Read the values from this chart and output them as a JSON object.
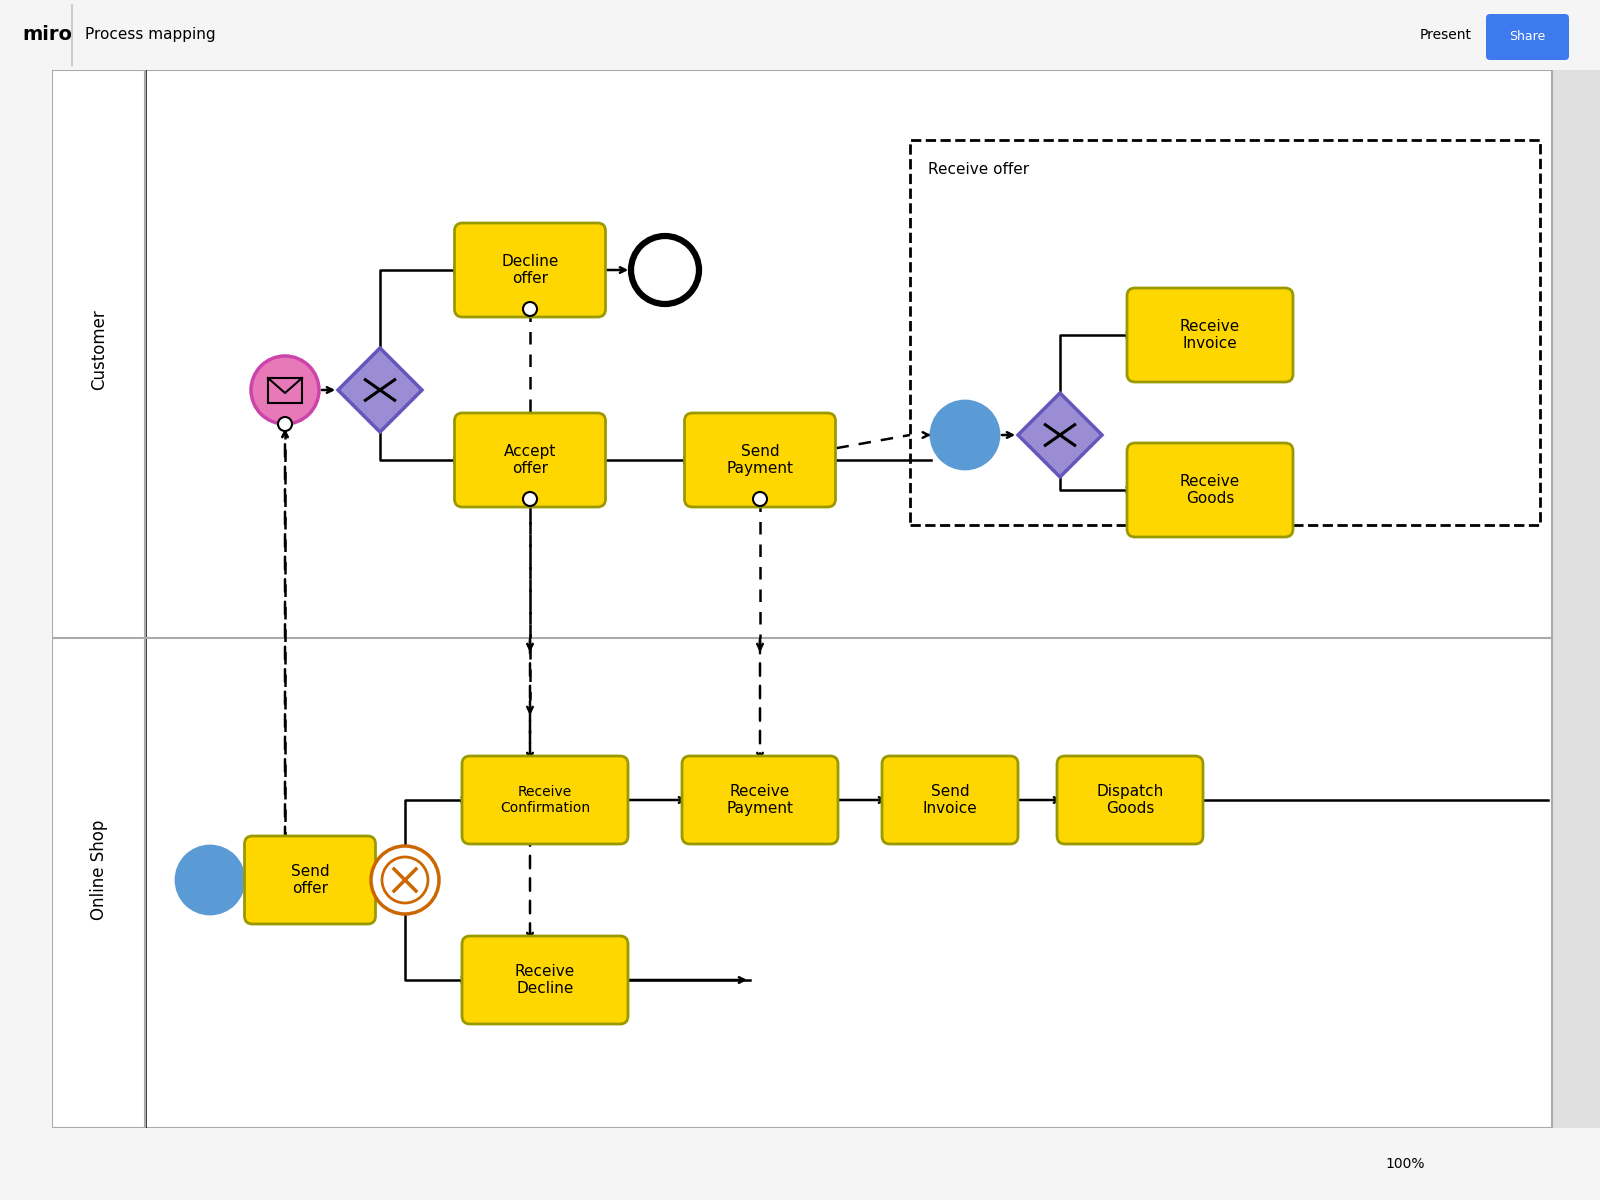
{
  "bg_color": "#e0e0e0",
  "canvas_bg": "#ffffff",
  "yellow": "#FFD700",
  "purple": "#9B8DD4",
  "purple_border": "#6655bb",
  "pink": "#E879B8",
  "pink_border": "#cc44aa",
  "blue_circle": "#5B9BD5",
  "orange_event": "#cc6600",
  "toolbar_bg": "#f5f5f5",
  "lane_label_customer": "Customer",
  "lane_label_shop": "Online Shop",
  "title": "Process mapping",
  "share_color": "#3d7aed",
  "black": "#000000",
  "white": "#ffffff",
  "gray_border": "#aaaaaa"
}
